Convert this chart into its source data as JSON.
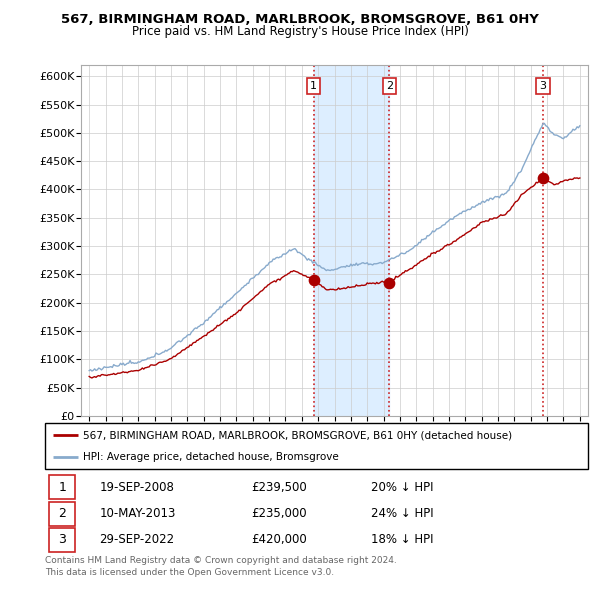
{
  "title": "567, BIRMINGHAM ROAD, MARLBROOK, BROMSGROVE, B61 0HY",
  "subtitle": "Price paid vs. HM Land Registry's House Price Index (HPI)",
  "legend_property": "567, BIRMINGHAM ROAD, MARLBROOK, BROMSGROVE, B61 0HY (detached house)",
  "legend_hpi": "HPI: Average price, detached house, Bromsgrove",
  "footnote1": "Contains HM Land Registry data © Crown copyright and database right 2024.",
  "footnote2": "This data is licensed under the Open Government Licence v3.0.",
  "sales": [
    {
      "num": "1",
      "date": "19-SEP-2008",
      "price": "£239,500",
      "pct": "20% ↓ HPI"
    },
    {
      "num": "2",
      "date": "10-MAY-2013",
      "price": "£235,000",
      "pct": "24% ↓ HPI"
    },
    {
      "num": "3",
      "date": "29-SEP-2022",
      "price": "£420,000",
      "pct": "18% ↓ HPI"
    }
  ],
  "sale_years": [
    2008.72,
    2013.36,
    2022.75
  ],
  "sale_prices": [
    239500,
    235000,
    420000
  ],
  "ylim": [
    0,
    620000
  ],
  "yticks": [
    0,
    50000,
    100000,
    150000,
    200000,
    250000,
    300000,
    350000,
    400000,
    450000,
    500000,
    550000,
    600000
  ],
  "ytick_labels": [
    "£0",
    "£50K",
    "£100K",
    "£150K",
    "£200K",
    "£250K",
    "£300K",
    "£350K",
    "£400K",
    "£450K",
    "£500K",
    "£550K",
    "£600K"
  ],
  "property_color": "#aa0000",
  "hpi_color": "#88aacc",
  "shaded_color": "#ddeeff",
  "vline_color": "#cc2222",
  "hpi_kp_years": [
    1995.0,
    1996.0,
    1998.0,
    2000.0,
    2002.0,
    2004.0,
    2006.0,
    2007.5,
    2008.5,
    2009.5,
    2011.0,
    2013.0,
    2014.5,
    2016.0,
    2017.5,
    2019.0,
    2020.5,
    2021.5,
    2022.3,
    2022.8,
    2023.3,
    2024.0,
    2024.8
  ],
  "hpi_kp_vals": [
    80000,
    84000,
    93000,
    120000,
    165000,
    215000,
    270000,
    295000,
    275000,
    255000,
    265000,
    270000,
    290000,
    325000,
    355000,
    380000,
    395000,
    440000,
    490000,
    520000,
    500000,
    490000,
    510000
  ],
  "prop_kp_years": [
    1995.0,
    1996.0,
    1998.0,
    2000.0,
    2002.0,
    2004.0,
    2006.0,
    2007.5,
    2008.72,
    2009.5,
    2011.0,
    2013.36,
    2014.5,
    2016.0,
    2017.5,
    2019.0,
    2020.5,
    2021.5,
    2022.75,
    2023.0,
    2023.5,
    2024.0,
    2024.8
  ],
  "prop_kp_vals": [
    68000,
    72000,
    80000,
    100000,
    140000,
    180000,
    230000,
    255000,
    239500,
    220000,
    225000,
    235000,
    255000,
    285000,
    310000,
    340000,
    355000,
    390000,
    420000,
    415000,
    408000,
    415000,
    420000
  ]
}
